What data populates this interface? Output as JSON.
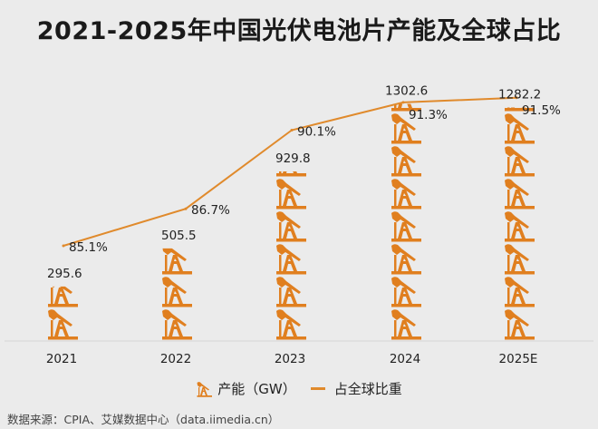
{
  "chart_data": {
    "type": "bar",
    "title": "2021-2025年中国光伏电池片产能及全球占比",
    "categories": [
      "2021",
      "2022",
      "2023",
      "2024",
      "2025E"
    ],
    "series": [
      {
        "name": "产能（GW）",
        "type": "pictograph-bar",
        "values": [
          295.6,
          505.5,
          929.8,
          1302.6,
          1282.2
        ],
        "labels": [
          "295.6",
          "505.5",
          "929.8",
          "1302.6",
          "1282.2"
        ],
        "icon": "pump-jack-icon"
      },
      {
        "name": "占全球比重",
        "type": "line",
        "values": [
          85.1,
          86.7,
          90.1,
          91.3,
          91.5
        ],
        "labels": [
          "85.1%",
          "86.7%",
          "90.1%",
          "91.3%",
          "91.5%"
        ]
      }
    ],
    "grid": false,
    "legend": "bottom",
    "colors": {
      "bar": "#e07f1f",
      "line": "#e08a2c",
      "background": "#ebebeb"
    }
  },
  "legend": {
    "bar_label": "产能（GW）",
    "line_label": "占全球比重"
  },
  "source": "数据来源：CPIA、艾媒数据中心（data.iimedia.cn）"
}
